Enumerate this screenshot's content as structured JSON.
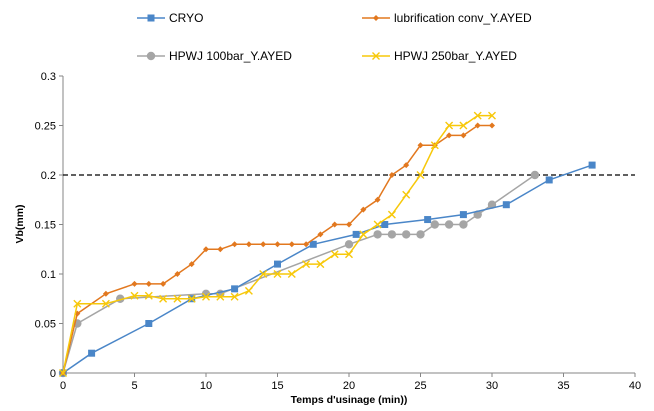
{
  "chart_data": {
    "type": "line",
    "xlabel": "Temps d'usinage (min))",
    "ylabel": "Vb(mm)",
    "xlim": [
      0,
      40
    ],
    "ylim": [
      0,
      0.3
    ],
    "xticks": [
      "0",
      "5",
      "10",
      "15",
      "20",
      "25",
      "30",
      "35",
      "40"
    ],
    "yticks": [
      "0",
      "0.05",
      "0.1",
      "0.15",
      "0.2",
      "0.25",
      "0.3"
    ],
    "grid": false,
    "legend_position": "top",
    "reference_line": {
      "y": 0.2,
      "style": "dashed",
      "color": "#000000"
    },
    "series": [
      {
        "name": "CRYO",
        "color": "#4a86c8",
        "marker": "square",
        "x": [
          0,
          2,
          6,
          9,
          12,
          15,
          17.5,
          20.5,
          22.5,
          25.5,
          28,
          31,
          34,
          37
        ],
        "y": [
          0,
          0.02,
          0.05,
          0.075,
          0.085,
          0.11,
          0.13,
          0.14,
          0.15,
          0.155,
          0.16,
          0.17,
          0.195,
          0.21
        ]
      },
      {
        "name": "lubrification conv_Y.AYED",
        "color": "#e2781f",
        "marker": "diamond",
        "x": [
          0,
          1,
          3,
          5,
          6,
          7,
          8,
          9,
          10,
          11,
          12,
          13,
          14,
          15,
          16,
          17,
          18,
          19,
          20,
          21,
          22,
          23,
          24,
          25,
          26,
          27,
          28,
          29,
          30
        ],
        "y": [
          0,
          0.06,
          0.08,
          0.09,
          0.09,
          0.09,
          0.1,
          0.11,
          0.125,
          0.125,
          0.13,
          0.13,
          0.13,
          0.13,
          0.13,
          0.13,
          0.14,
          0.15,
          0.15,
          0.165,
          0.175,
          0.2,
          0.21,
          0.23,
          0.23,
          0.24,
          0.24,
          0.25,
          0.25
        ]
      },
      {
        "name": "HPWJ 100bar_Y.AYED",
        "color": "#a5a5a5",
        "marker": "circle",
        "x": [
          0,
          1,
          4,
          10,
          11,
          20,
          22,
          23,
          24,
          25,
          26,
          27,
          28,
          29,
          30,
          33
        ],
        "y": [
          0,
          0.05,
          0.075,
          0.08,
          0.08,
          0.13,
          0.14,
          0.14,
          0.14,
          0.14,
          0.15,
          0.15,
          0.15,
          0.16,
          0.17,
          0.2
        ]
      },
      {
        "name": "HPWJ 250bar_Y.AYED",
        "color": "#f7c80a",
        "marker": "x",
        "x": [
          0,
          1,
          3,
          5,
          6,
          7,
          8,
          9,
          10,
          11,
          12,
          13,
          14,
          15,
          16,
          17,
          18,
          19,
          20,
          21,
          22,
          23,
          24,
          25,
          26,
          27,
          28,
          29,
          30
        ],
        "y": [
          0,
          0.07,
          0.07,
          0.078,
          0.078,
          0.075,
          0.075,
          0.075,
          0.077,
          0.077,
          0.077,
          0.083,
          0.1,
          0.1,
          0.1,
          0.11,
          0.11,
          0.12,
          0.12,
          0.14,
          0.15,
          0.16,
          0.18,
          0.2,
          0.23,
          0.25,
          0.25,
          0.26,
          0.26
        ]
      }
    ]
  }
}
